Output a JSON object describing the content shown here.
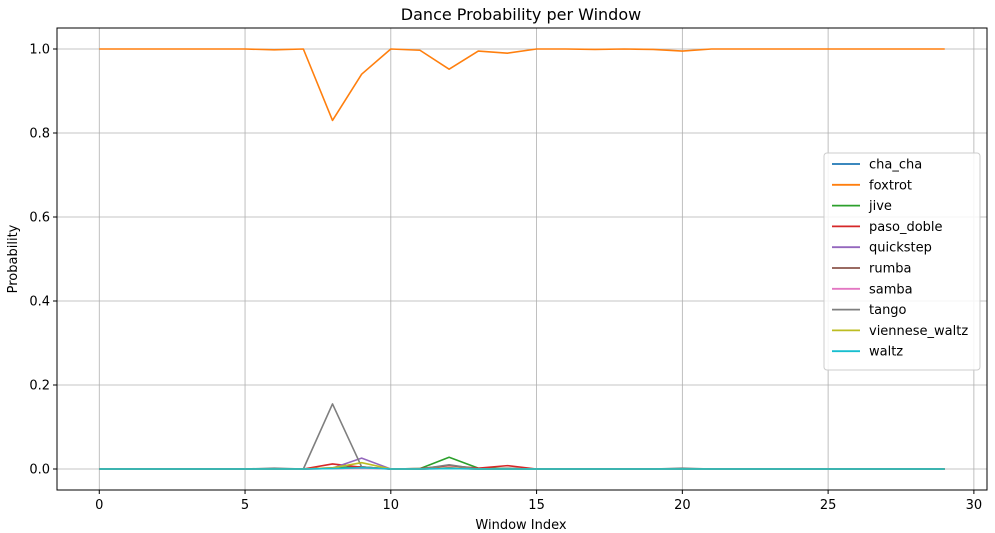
{
  "chart_data": {
    "type": "line",
    "title": "Dance Probability per Window",
    "xlabel": "Window Index",
    "ylabel": "Probability",
    "xlim": [
      -1.45,
      30.45
    ],
    "ylim": [
      -0.05,
      1.05
    ],
    "xticks": [
      0,
      5,
      10,
      15,
      20,
      25,
      30
    ],
    "yticks": [
      0.0,
      0.2,
      0.4,
      0.6,
      0.8,
      1.0
    ],
    "xtick_labels": [
      "0",
      "5",
      "10",
      "15",
      "20",
      "25",
      "30"
    ],
    "ytick_labels": [
      "0.0",
      "0.2",
      "0.4",
      "0.6",
      "0.8",
      "1.0"
    ],
    "grid": true,
    "legend_position": "center-right",
    "x": [
      0,
      1,
      2,
      3,
      4,
      5,
      6,
      7,
      8,
      9,
      10,
      11,
      12,
      13,
      14,
      15,
      16,
      17,
      18,
      19,
      20,
      21,
      22,
      23,
      24,
      25,
      26,
      27,
      28,
      29
    ],
    "series": [
      {
        "name": "cha_cha",
        "color": "#1f77b4",
        "values": [
          0,
          0,
          0,
          0,
          0,
          0,
          0,
          0,
          0.003,
          0.005,
          0,
          0,
          0.003,
          0,
          0.001,
          0,
          0,
          0,
          0,
          0,
          0,
          0,
          0,
          0,
          0,
          0,
          0,
          0,
          0,
          0
        ]
      },
      {
        "name": "foxtrot",
        "color": "#ff7f0e",
        "values": [
          1.0,
          1.0,
          1.0,
          1.0,
          1.0,
          1.0,
          0.998,
          1.0,
          0.83,
          0.94,
          1.0,
          0.997,
          0.952,
          0.995,
          0.99,
          1.0,
          1.0,
          0.999,
          1.0,
          0.999,
          0.995,
          1.0,
          1.0,
          1.0,
          1.0,
          1.0,
          1.0,
          1.0,
          1.0,
          1.0
        ]
      },
      {
        "name": "jive",
        "color": "#2ca02c",
        "values": [
          0,
          0,
          0,
          0,
          0,
          0,
          0,
          0,
          0.002,
          0.005,
          0,
          0.001,
          0.028,
          0.002,
          0.001,
          0,
          0,
          0,
          0,
          0,
          0,
          0,
          0,
          0,
          0,
          0,
          0,
          0,
          0,
          0
        ]
      },
      {
        "name": "paso_doble",
        "color": "#d62728",
        "values": [
          0,
          0,
          0,
          0,
          0,
          0,
          0,
          0,
          0.012,
          0.004,
          0,
          0.001,
          0.008,
          0.002,
          0.008,
          0,
          0,
          0,
          0,
          0,
          0,
          0,
          0,
          0,
          0,
          0,
          0,
          0,
          0,
          0
        ]
      },
      {
        "name": "quickstep",
        "color": "#9467bd",
        "values": [
          0,
          0,
          0,
          0,
          0,
          0,
          0,
          0,
          0.002,
          0.026,
          0,
          0,
          0.002,
          0,
          0,
          0,
          0,
          0,
          0,
          0,
          0,
          0,
          0,
          0,
          0,
          0,
          0,
          0,
          0,
          0
        ]
      },
      {
        "name": "rumba",
        "color": "#8c564b",
        "values": [
          0,
          0,
          0,
          0,
          0,
          0,
          0,
          0,
          0.001,
          0.003,
          0,
          0,
          0.002,
          0,
          0.001,
          0,
          0,
          0,
          0,
          0,
          0,
          0,
          0,
          0,
          0,
          0,
          0,
          0,
          0,
          0
        ]
      },
      {
        "name": "samba",
        "color": "#e377c2",
        "values": [
          0,
          0,
          0,
          0,
          0,
          0,
          0,
          0,
          0.001,
          0.002,
          0,
          0,
          0.001,
          0,
          0,
          0,
          0,
          0,
          0,
          0,
          0,
          0,
          0,
          0,
          0,
          0,
          0,
          0,
          0,
          0
        ]
      },
      {
        "name": "tango",
        "color": "#7f7f7f",
        "values": [
          0,
          0,
          0,
          0,
          0,
          0,
          0.002,
          0,
          0.155,
          0.005,
          0,
          0,
          0.01,
          0,
          0,
          0,
          0,
          0,
          0,
          0,
          0.002,
          0,
          0,
          0,
          0,
          0,
          0,
          0,
          0,
          0
        ]
      },
      {
        "name": "viennese_waltz",
        "color": "#bcbd22",
        "values": [
          0,
          0,
          0,
          0,
          0,
          0,
          0,
          0,
          0.003,
          0.015,
          0,
          0,
          0.002,
          0,
          0,
          0,
          0,
          0,
          0,
          0,
          0,
          0,
          0,
          0,
          0,
          0,
          0,
          0,
          0,
          0
        ]
      },
      {
        "name": "waltz",
        "color": "#17becf",
        "values": [
          0,
          0,
          0,
          0,
          0,
          0,
          0,
          0,
          0.001,
          0.003,
          0,
          0,
          0.001,
          0,
          0,
          0,
          0,
          0,
          0,
          0,
          0,
          0,
          0,
          0,
          0,
          0,
          0,
          0,
          0,
          0
        ]
      }
    ]
  }
}
